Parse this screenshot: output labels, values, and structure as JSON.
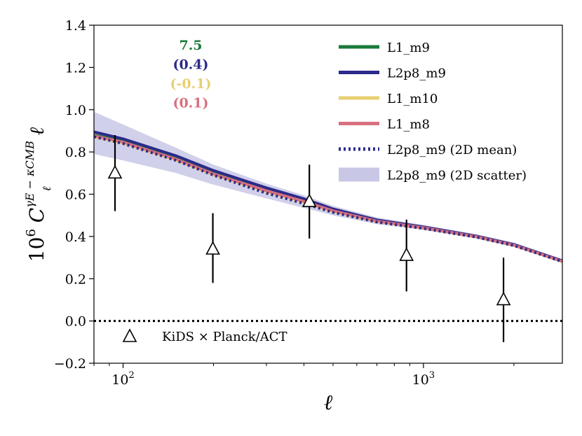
{
  "chart_data": {
    "type": "line",
    "xscale": "log",
    "xlim": [
      80,
      2900
    ],
    "ylim": [
      -0.2,
      1.4
    ],
    "xlabel": "ℓ",
    "ylabel": {
      "prefix": "10",
      "prefix_exp": "6",
      "symbol": "C",
      "sub": "ℓ",
      "sup": "γE − κCMB",
      "suffix": "ℓ"
    },
    "yticks": [
      -0.2,
      0.0,
      0.2,
      0.4,
      0.6,
      0.8,
      1.0,
      1.2,
      1.4
    ],
    "ytick_labels": [
      "−0.2",
      "0.0",
      "0.2",
      "0.4",
      "0.6",
      "0.8",
      "1.0",
      "1.2",
      "1.4"
    ],
    "xticks_major": [
      {
        "value": 100,
        "base": "10",
        "exp": "2"
      },
      {
        "value": 1000,
        "base": "10",
        "exp": "3"
      }
    ],
    "xticks_minor": [
      80,
      90,
      200,
      300,
      400,
      500,
      600,
      700,
      800,
      900,
      2000
    ],
    "grid": false,
    "legend_position": "top-right",
    "series": [
      {
        "name": "L1_m9",
        "color": "#1a7a3a",
        "style": "solid",
        "x": [
          80,
          100,
          150,
          200,
          300,
          400,
          500,
          700,
          1000,
          1500,
          2000,
          2900
        ],
        "y": [
          0.88,
          0.85,
          0.77,
          0.7,
          0.62,
          0.57,
          0.525,
          0.475,
          0.443,
          0.4,
          0.36,
          0.283
        ]
      },
      {
        "name": "L2p8_m9",
        "color": "#2c2a8a",
        "style": "solid",
        "x": [
          80,
          100,
          150,
          200,
          300,
          400,
          500,
          700,
          1000,
          1500,
          2000,
          2900
        ],
        "y": [
          0.895,
          0.862,
          0.782,
          0.712,
          0.63,
          0.578,
          0.53,
          0.478,
          0.445,
          0.402,
          0.362,
          0.285
        ]
      },
      {
        "name": "L1_m10",
        "color": "#e8cf73",
        "style": "solid",
        "x": [
          80,
          100,
          150,
          200,
          300,
          400,
          500,
          700,
          1000,
          1500,
          2000,
          2900
        ],
        "y": [
          0.872,
          0.842,
          0.762,
          0.692,
          0.612,
          0.562,
          0.518,
          0.47,
          0.44,
          0.398,
          0.358,
          0.281
        ]
      },
      {
        "name": "L1_m8",
        "color": "#d9707f",
        "style": "solid",
        "x": [
          80,
          100,
          150,
          200,
          300,
          400,
          500,
          700,
          1000,
          1500,
          2000,
          2900
        ],
        "y": [
          0.876,
          0.846,
          0.766,
          0.696,
          0.616,
          0.566,
          0.521,
          0.472,
          0.441,
          0.399,
          0.359,
          0.282
        ]
      },
      {
        "name": "L2p8_m9 (2D mean)",
        "color": "#2c2a8a",
        "style": "dotted",
        "x": [
          80,
          100,
          150,
          200,
          300,
          400,
          500,
          700,
          1000,
          1500,
          2000,
          2900
        ],
        "y": [
          0.872,
          0.84,
          0.76,
          0.69,
          0.605,
          0.556,
          0.514,
          0.468,
          0.438,
          0.397,
          0.357,
          0.281
        ]
      }
    ],
    "band": {
      "name": "L2p8_m9 (2D scatter)",
      "color": "#c8c8e6",
      "x": [
        80,
        100,
        150,
        200,
        300,
        400,
        500,
        700,
        1000,
        1500,
        2000,
        2900
      ],
      "upper": [
        0.99,
        0.93,
        0.82,
        0.74,
        0.65,
        0.595,
        0.545,
        0.49,
        0.455,
        0.41,
        0.37,
        0.29
      ],
      "lower": [
        0.79,
        0.76,
        0.7,
        0.645,
        0.58,
        0.535,
        0.5,
        0.458,
        0.43,
        0.39,
        0.35,
        0.276
      ]
    },
    "observations": {
      "name": "KiDS × Planck/ACT",
      "marker": "triangle-open",
      "points": [
        {
          "x": 94,
          "y": 0.7,
          "yerr_low": 0.52,
          "yerr_high": 0.88
        },
        {
          "x": 199,
          "y": 0.34,
          "yerr_low": 0.18,
          "yerr_high": 0.51
        },
        {
          "x": 417,
          "y": 0.565,
          "yerr_low": 0.39,
          "yerr_high": 0.74
        },
        {
          "x": 878,
          "y": 0.31,
          "yerr_low": 0.14,
          "yerr_high": 0.48
        },
        {
          "x": 1847,
          "y": 0.1,
          "yerr_low": -0.1,
          "yerr_high": 0.3
        }
      ]
    },
    "zero_line": {
      "y": 0.0,
      "style": "dotted",
      "color": "#000000"
    },
    "annotations": [
      {
        "text": "7.5",
        "color": "#1a7a3a"
      },
      {
        "text": "(0.4)",
        "color": "#2c2a8a"
      },
      {
        "text": "(-0.1)",
        "color": "#e8cf73"
      },
      {
        "text": "(0.1)",
        "color": "#d9707f"
      }
    ]
  }
}
